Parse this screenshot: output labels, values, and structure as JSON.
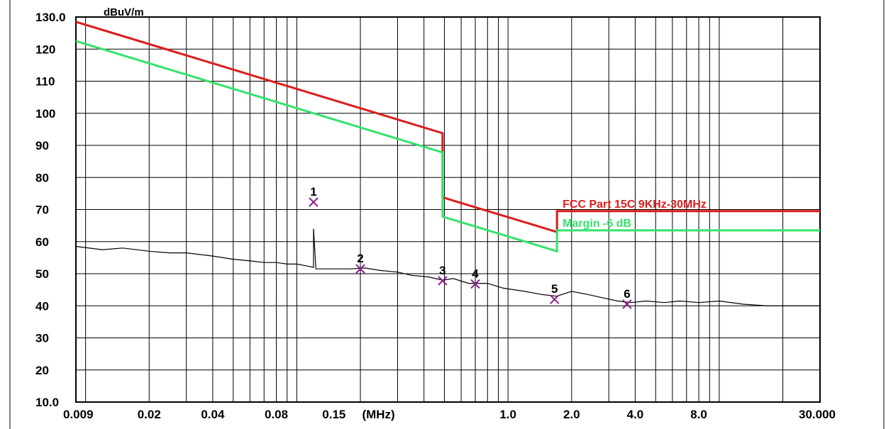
{
  "chart_data": {
    "type": "line",
    "y_unit": "dBuV/m",
    "x_unit": "(MHz)",
    "x_scale": "log",
    "xlim": [
      0.009,
      30.0
    ],
    "ylim": [
      10,
      130
    ],
    "y_ticks": [
      {
        "value": 130,
        "label": "130.0"
      },
      {
        "value": 120,
        "label": "120"
      },
      {
        "value": 110,
        "label": "110"
      },
      {
        "value": 100,
        "label": "100"
      },
      {
        "value": 90,
        "label": "90"
      },
      {
        "value": 80,
        "label": "80"
      },
      {
        "value": 70,
        "label": "70"
      },
      {
        "value": 60,
        "label": "60"
      },
      {
        "value": 50,
        "label": "50"
      },
      {
        "value": 40,
        "label": "40"
      },
      {
        "value": 30,
        "label": "30"
      },
      {
        "value": 20,
        "label": "20"
      },
      {
        "value": 10,
        "label": "10.0"
      }
    ],
    "x_ticks": [
      {
        "value": 0.009,
        "label": "0.009"
      },
      {
        "value": 0.02,
        "label": "0.02"
      },
      {
        "value": 0.04,
        "label": "0.04"
      },
      {
        "value": 0.08,
        "label": "0.08"
      },
      {
        "value": 0.15,
        "label": "0.15"
      },
      {
        "value": 1.0,
        "label": "1.0"
      },
      {
        "value": 2.0,
        "label": "2.0"
      },
      {
        "value": 4.0,
        "label": "4.0"
      },
      {
        "value": 8.0,
        "label": "8.0"
      },
      {
        "value": 30.0,
        "label": "30.000"
      }
    ],
    "x_unit_position": 0.4,
    "grid": true,
    "colors": {
      "limit": "#dd1c1c",
      "margin": "#33e36b",
      "trace": "#2020b8",
      "marker": "#8a1a8a",
      "grid": "#000000"
    },
    "series": [
      {
        "name": "FCC Part 15C 9KHz-30MHz",
        "role": "limit",
        "x": [
          0.009,
          0.49,
          0.49,
          0.49,
          1.705,
          1.705,
          30.0
        ],
        "y": [
          128.5,
          93.8,
          89.0,
          73.8,
          63.0,
          69.5,
          69.5
        ]
      },
      {
        "name": "Margin -6 dB",
        "role": "margin",
        "x": [
          0.009,
          0.49,
          0.49,
          1.705,
          1.705,
          30.0
        ],
        "y": [
          122.5,
          87.8,
          67.8,
          57.0,
          63.5,
          63.5
        ]
      },
      {
        "name": "",
        "role": "measurement",
        "x": [
          0.009,
          0.012,
          0.015,
          0.02,
          0.025,
          0.03,
          0.04,
          0.05,
          0.06,
          0.07,
          0.08,
          0.09,
          0.1,
          0.11,
          0.12,
          0.12,
          0.123,
          0.123,
          0.13,
          0.15,
          0.18,
          0.21,
          0.25,
          0.3,
          0.35,
          0.42,
          0.49,
          0.55,
          0.65,
          0.8,
          0.95,
          1.2,
          1.45,
          1.7,
          2.0,
          2.4,
          2.8,
          3.3,
          3.8,
          4.5,
          5.5,
          6.5,
          8.0,
          10.0,
          13.0,
          17.0,
          22.0,
          30.0
        ],
        "y": [
          58.5,
          57.5,
          58.0,
          57.0,
          56.5,
          56.5,
          55.5,
          54.5,
          54.0,
          53.5,
          53.5,
          53.0,
          53.0,
          52.5,
          52.0,
          64.0,
          52.0,
          51.5,
          51.5,
          51.5,
          51.5,
          51.8,
          51.0,
          50.5,
          49.5,
          49.0,
          48.0,
          48.5,
          47.0,
          47.0,
          45.5,
          44.5,
          43.5,
          43.0,
          44.5,
          43.5,
          42.5,
          41.5,
          41.0,
          41.5,
          41.0,
          41.5,
          41.0,
          41.5,
          40.5,
          40.0,
          40.0,
          40.0
        ]
      }
    ],
    "markers": [
      {
        "label": "1",
        "x": 0.12,
        "y": 72.3
      },
      {
        "label": "2",
        "x": 0.2,
        "y": 51.5
      },
      {
        "label": "3",
        "x": 0.49,
        "y": 47.8
      },
      {
        "label": "4",
        "x": 0.7,
        "y": 46.8
      },
      {
        "label": "5",
        "x": 1.66,
        "y": 42.0
      },
      {
        "label": "6",
        "x": 3.66,
        "y": 40.5
      }
    ],
    "legend": [
      {
        "text": "FCC Part 15C 9KHz-30MHz",
        "color": "#dd1c1c"
      },
      {
        "text": "Margin -6 dB",
        "color": "#33e36b"
      }
    ],
    "legend_placement": "right, above limit lines"
  }
}
